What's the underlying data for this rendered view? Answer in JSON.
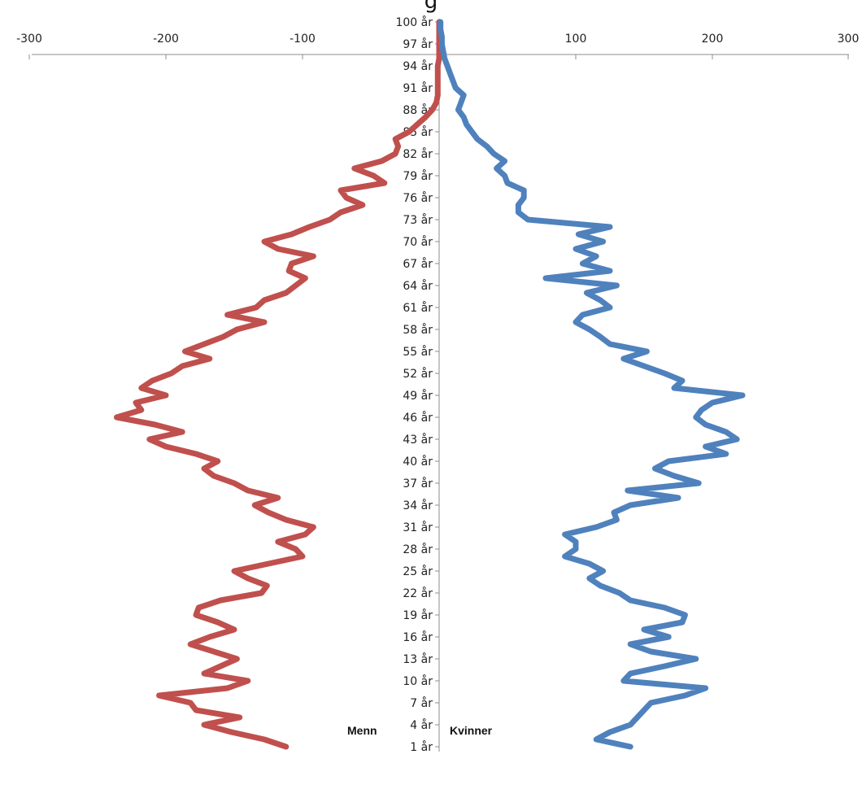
{
  "title": "g",
  "chart_data": {
    "type": "line",
    "orientation": "vertical-population-pyramid",
    "xlim": [
      -300,
      300
    ],
    "x_ticks": [
      -300,
      -200,
      -100,
      0,
      100,
      200,
      300
    ],
    "x_tick_labels": [
      "-300",
      "-200",
      "-100",
      "0",
      "100",
      "200",
      "300"
    ],
    "age_ticks": [
      1,
      4,
      7,
      10,
      13,
      16,
      19,
      22,
      25,
      28,
      31,
      34,
      37,
      40,
      43,
      46,
      49,
      52,
      55,
      58,
      61,
      64,
      67,
      70,
      73,
      76,
      79,
      82,
      85,
      88,
      91,
      94,
      97,
      100
    ],
    "age_tick_labels": [
      "1 år",
      "4 år",
      "7 år",
      "10 år",
      "13 år",
      "16 år",
      "19 år",
      "22 år",
      "25 år",
      "28 år",
      "31 år",
      "34 år",
      "37 år",
      "40 år",
      "43 år",
      "46 år",
      "49 år",
      "52 år",
      "55 år",
      "58 år",
      "61 år",
      "64 år",
      "67 år",
      "70 år",
      "73 år",
      "76 år",
      "79 år",
      "82 år",
      "85 år",
      "88 år",
      "91 år",
      "94 år",
      "97 år",
      "100 år"
    ],
    "ages": [
      1,
      2,
      3,
      4,
      5,
      6,
      7,
      8,
      9,
      10,
      11,
      12,
      13,
      14,
      15,
      16,
      17,
      18,
      19,
      20,
      21,
      22,
      23,
      24,
      25,
      26,
      27,
      28,
      29,
      30,
      31,
      32,
      33,
      34,
      35,
      36,
      37,
      38,
      39,
      40,
      41,
      42,
      43,
      44,
      45,
      46,
      47,
      48,
      49,
      50,
      51,
      52,
      53,
      54,
      55,
      56,
      57,
      58,
      59,
      60,
      61,
      62,
      63,
      64,
      65,
      66,
      67,
      68,
      69,
      70,
      71,
      72,
      73,
      74,
      75,
      76,
      77,
      78,
      79,
      80,
      81,
      82,
      83,
      84,
      85,
      86,
      87,
      88,
      89,
      90,
      91,
      92,
      93,
      94,
      95,
      96,
      97,
      98,
      99,
      100
    ],
    "series": [
      {
        "name": "Menn",
        "color": "#c0504d",
        "values": [
          -112,
          -128,
          -152,
          -172,
          -146,
          -178,
          -182,
          -205,
          -155,
          -140,
          -172,
          -160,
          -148,
          -165,
          -182,
          -168,
          -150,
          -162,
          -178,
          -176,
          -160,
          -130,
          -126,
          -140,
          -150,
          -125,
          -100,
          -105,
          -118,
          -98,
          -92,
          -112,
          -125,
          -135,
          -118,
          -140,
          -150,
          -165,
          -172,
          -162,
          -178,
          -200,
          -212,
          -188,
          -208,
          -236,
          -218,
          -222,
          -200,
          -218,
          -210,
          -196,
          -188,
          -168,
          -186,
          -172,
          -158,
          -148,
          -128,
          -155,
          -134,
          -128,
          -112,
          -105,
          -98,
          -110,
          -108,
          -92,
          -118,
          -128,
          -108,
          -95,
          -80,
          -72,
          -56,
          -68,
          -72,
          -40,
          -48,
          -62,
          -42,
          -32,
          -30,
          -32,
          -22,
          -16,
          -10,
          -5,
          -2,
          -1,
          -1,
          -1,
          -1,
          -1,
          0,
          0,
          0,
          0,
          0,
          0
        ]
      },
      {
        "name": "Kvinner",
        "color": "#4f81bd",
        "values": [
          140,
          115,
          125,
          140,
          145,
          150,
          155,
          180,
          195,
          135,
          140,
          165,
          188,
          155,
          140,
          168,
          150,
          178,
          180,
          165,
          140,
          132,
          118,
          110,
          120,
          110,
          92,
          100,
          100,
          92,
          115,
          130,
          128,
          140,
          175,
          138,
          190,
          172,
          158,
          168,
          210,
          195,
          218,
          210,
          195,
          188,
          192,
          200,
          222,
          172,
          178,
          165,
          150,
          135,
          152,
          125,
          118,
          110,
          100,
          105,
          125,
          118,
          108,
          130,
          78,
          125,
          105,
          115,
          100,
          120,
          102,
          125,
          65,
          58,
          58,
          62,
          62,
          50,
          48,
          42,
          48,
          40,
          35,
          28,
          24,
          20,
          18,
          14,
          16,
          18,
          12,
          10,
          8,
          6,
          4,
          3,
          2,
          2,
          1,
          1
        ]
      }
    ],
    "series_labels": [
      "Menn",
      "Kvinner"
    ],
    "grid": false,
    "legend": "none"
  }
}
